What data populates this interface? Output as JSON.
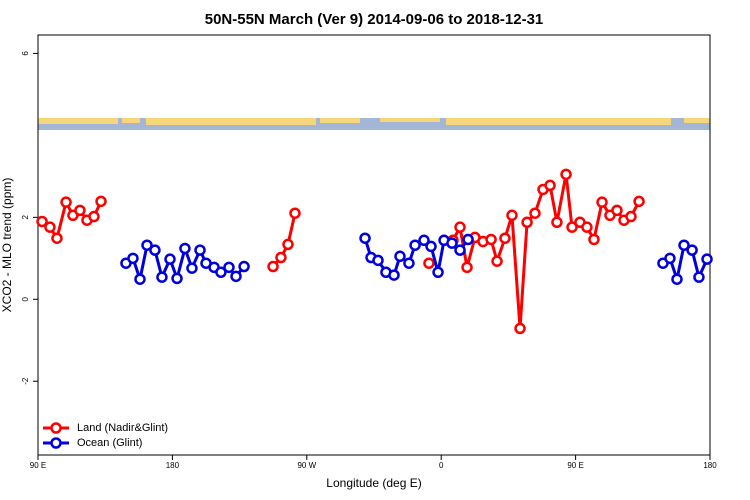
{
  "chart_data": {
    "type": "line",
    "title": "50N-55N March (Ver 9)   2014-09-06 to 2018-12-31",
    "x_label": "Longitude (deg E)",
    "y_label": "XCO2 - MLO trend (ppm)",
    "xlim": [
      90,
      540
    ],
    "xticks": [
      {
        "value": 90,
        "label": "90 E"
      },
      {
        "value": 180,
        "label": "180"
      },
      {
        "value": 270,
        "label": "90 W"
      },
      {
        "value": 360,
        "label": "0"
      },
      {
        "value": 450,
        "label": "90 E"
      },
      {
        "value": 540,
        "label": "180"
      }
    ],
    "ylim": [
      -3.8,
      6.45
    ],
    "yticks": [
      -2,
      0,
      2,
      6
    ],
    "legend": "bottomleft",
    "series": [
      {
        "name": "Land (Nadir&Glint)",
        "color": "#ff0000",
        "x": [
          92.7,
          98.0,
          102.7,
          108.8,
          113.4,
          118.1,
          122.8,
          127.5,
          132.2,
          null,
          247.4,
          252.7,
          257.4,
          262.1,
          null,
          351.8,
          null,
          367.9,
          372.6,
          377.3,
          382.6,
          388.0,
          393.4,
          397.4,
          402.7,
          407.4,
          412.8,
          417.5,
          422.8,
          428.2,
          432.9,
          437.5,
          443.6,
          447.6,
          452.9,
          457.6,
          462.3,
          467.7,
          473.0,
          477.7,
          482.4,
          487.1,
          492.5
        ],
        "values": [
          1.9,
          1.76,
          1.49,
          2.37,
          2.05,
          2.17,
          1.93,
          2.02,
          2.39,
          null,
          0.8,
          1.02,
          1.34,
          2.1,
          null,
          0.88,
          null,
          1.44,
          1.76,
          0.78,
          1.51,
          1.41,
          1.46,
          0.93,
          1.49,
          2.05,
          -0.71,
          1.88,
          2.1,
          2.68,
          2.78,
          1.88,
          3.05,
          1.76,
          1.88,
          1.76,
          1.46,
          2.37,
          2.05,
          2.17,
          1.93,
          2.02,
          2.39
        ]
      },
      {
        "name": "Ocean (Glint)",
        "color": "#0000dd",
        "x": [
          148.9,
          153.6,
          158.3,
          163.0,
          168.3,
          173.0,
          178.4,
          183.1,
          188.4,
          193.1,
          198.5,
          202.5,
          207.9,
          212.5,
          217.9,
          222.6,
          228.0,
          null,
          309.0,
          313.0,
          317.7,
          323.0,
          328.4,
          332.4,
          338.4,
          342.5,
          348.5,
          353.2,
          357.9,
          361.9,
          367.2,
          372.6,
          378.0,
          null,
          508.5,
          513.2,
          517.9,
          522.6,
          528.0,
          532.6,
          538.0
        ],
        "values": [
          0.88,
          1.0,
          0.49,
          1.32,
          1.2,
          0.54,
          0.98,
          0.51,
          1.24,
          0.76,
          1.2,
          0.88,
          0.78,
          0.66,
          0.78,
          0.56,
          0.8,
          null,
          1.49,
          1.02,
          0.95,
          0.66,
          0.59,
          1.05,
          0.88,
          1.32,
          1.44,
          1.29,
          0.66,
          1.44,
          1.37,
          1.2,
          1.46,
          null,
          0.88,
          1.0,
          0.49,
          1.32,
          1.2,
          0.54,
          0.98
        ]
      }
    ]
  }
}
